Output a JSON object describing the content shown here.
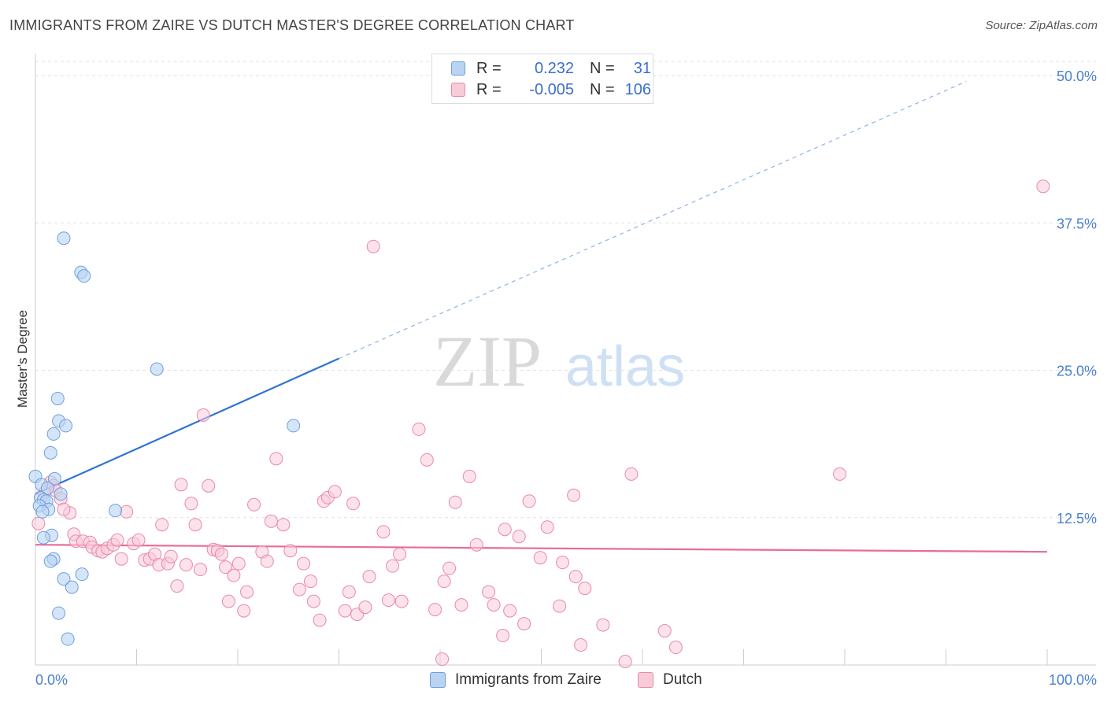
{
  "title": "IMMIGRANTS FROM ZAIRE VS DUTCH MASTER'S DEGREE CORRELATION CHART",
  "source": "Source: ZipAtlas.com",
  "watermark": {
    "zip": "ZIP",
    "atlas": "atlas"
  },
  "legend": {
    "rows": [
      {
        "r_label": "R =",
        "r_value": "0.232",
        "n_label": "N =",
        "n_value": "31",
        "color": "#a9c8f0",
        "border": "#6f9fdc"
      },
      {
        "r_label": "R =",
        "r_value": "-0.005",
        "n_label": "N =",
        "n_value": "106",
        "color": "#f8c3d3",
        "border": "#e88aa8"
      }
    ]
  },
  "bottom_legend": [
    {
      "label": "Immigrants from Zaire",
      "color": "#a9c8f0",
      "border": "#6f9fdc"
    },
    {
      "label": "Dutch",
      "color": "#f8c3d3",
      "border": "#e88aa8"
    }
  ],
  "chart_data": {
    "type": "scatter",
    "xlabel": "",
    "ylabel": "Master's Degree",
    "xlim": [
      0,
      100
    ],
    "ylim": [
      0,
      50
    ],
    "x_tick_labels": [
      "0.0%",
      "100.0%"
    ],
    "y_ticks": [
      12.5,
      25.0,
      37.5,
      50.0
    ],
    "y_tick_labels": [
      "12.5%",
      "25.0%",
      "37.5%",
      "50.0%"
    ],
    "grid": "horizontal dashed",
    "legend_position": "top-center",
    "colors": {
      "zaire": "#6f9fdc",
      "zaire_fill": "#b9d3f3",
      "zaire_line": "#2f73d0",
      "dutch": "#e88aa8",
      "dutch_fill": "#f9cbd9",
      "dutch_line": "#e86c95"
    },
    "series": [
      {
        "name": "Immigrants from Zaire",
        "r": 0.232,
        "n": 31,
        "trend": {
          "x0": 0,
          "y0": 14.5,
          "x1": 30,
          "y1": 26.0,
          "dashed_to_x": 92,
          "dashed_to_y": 49.5
        },
        "points": [
          [
            0,
            16
          ],
          [
            2.8,
            36.2
          ],
          [
            4.5,
            33.3
          ],
          [
            4.8,
            33
          ],
          [
            12,
            25.1
          ],
          [
            2.2,
            22.6
          ],
          [
            2.3,
            20.7
          ],
          [
            3,
            20.3
          ],
          [
            1.8,
            19.6
          ],
          [
            1.5,
            18
          ],
          [
            1.9,
            15.8
          ],
          [
            0.6,
            15.3
          ],
          [
            1.2,
            15
          ],
          [
            2.5,
            14.5
          ],
          [
            0.5,
            14.2
          ],
          [
            0.8,
            14
          ],
          [
            1.1,
            13.9
          ],
          [
            0.4,
            13.5
          ],
          [
            1.3,
            13.2
          ],
          [
            0.7,
            13
          ],
          [
            7.9,
            13.1
          ],
          [
            1.6,
            11
          ],
          [
            0.8,
            10.8
          ],
          [
            1.8,
            9
          ],
          [
            1.5,
            8.8
          ],
          [
            4.6,
            7.7
          ],
          [
            2.8,
            7.3
          ],
          [
            3.6,
            6.6
          ],
          [
            2.3,
            4.4
          ],
          [
            3.2,
            2.2
          ],
          [
            25.5,
            20.3
          ]
        ]
      },
      {
        "name": "Dutch",
        "r": -0.005,
        "n": 106,
        "trend": {
          "x0": 0,
          "y0": 10.2,
          "x1": 100,
          "y1": 9.6
        },
        "points": [
          [
            0.3,
            12
          ],
          [
            1.5,
            15.5
          ],
          [
            1.8,
            15.2
          ],
          [
            2,
            14.8
          ],
          [
            0.9,
            14.6
          ],
          [
            2.5,
            14.1
          ],
          [
            3.4,
            12.9
          ],
          [
            2.8,
            13.2
          ],
          [
            3.8,
            11.1
          ],
          [
            4,
            10.5
          ],
          [
            4.7,
            10.5
          ],
          [
            5.4,
            10.4
          ],
          [
            5.6,
            10
          ],
          [
            6.2,
            9.7
          ],
          [
            6.6,
            9.6
          ],
          [
            7.1,
            9.9
          ],
          [
            7.7,
            10.2
          ],
          [
            8.1,
            10.6
          ],
          [
            8.5,
            9
          ],
          [
            9,
            13
          ],
          [
            9.7,
            10.3
          ],
          [
            10.2,
            10.6
          ],
          [
            10.8,
            8.9
          ],
          [
            11.3,
            9
          ],
          [
            11.8,
            9.4
          ],
          [
            12.2,
            8.5
          ],
          [
            12.5,
            11.9
          ],
          [
            13.1,
            8.6
          ],
          [
            13.4,
            9.2
          ],
          [
            14,
            6.7
          ],
          [
            14.4,
            15.3
          ],
          [
            14.9,
            8.5
          ],
          [
            15.4,
            13.7
          ],
          [
            15.8,
            11.9
          ],
          [
            16.3,
            8.1
          ],
          [
            16.6,
            21.2
          ],
          [
            17.1,
            15.2
          ],
          [
            17.6,
            9.8
          ],
          [
            18,
            9.7
          ],
          [
            18.4,
            9.4
          ],
          [
            18.8,
            8.3
          ],
          [
            19.1,
            5.4
          ],
          [
            19.6,
            7.6
          ],
          [
            20.1,
            8.6
          ],
          [
            20.6,
            4.6
          ],
          [
            20.9,
            6.2
          ],
          [
            21.6,
            13.6
          ],
          [
            22.4,
            9.6
          ],
          [
            22.9,
            8.8
          ],
          [
            23.3,
            12.2
          ],
          [
            23.8,
            17.5
          ],
          [
            24.5,
            11.9
          ],
          [
            25.2,
            9.7
          ],
          [
            26.1,
            6.4
          ],
          [
            26.5,
            8.6
          ],
          [
            27.2,
            7.1
          ],
          [
            27.5,
            5.4
          ],
          [
            28.1,
            3.8
          ],
          [
            28.5,
            13.9
          ],
          [
            28.9,
            14.2
          ],
          [
            29.6,
            14.7
          ],
          [
            30.6,
            4.6
          ],
          [
            31,
            6.2
          ],
          [
            31.4,
            13.7
          ],
          [
            31.8,
            4.3
          ],
          [
            32.6,
            4.9
          ],
          [
            33,
            7.5
          ],
          [
            33.4,
            35.5
          ],
          [
            34.4,
            11.3
          ],
          [
            34.9,
            5.5
          ],
          [
            35.3,
            8.4
          ],
          [
            36.2,
            5.4
          ],
          [
            36,
            9.4
          ],
          [
            37.9,
            20
          ],
          [
            38.7,
            17.4
          ],
          [
            39.5,
            4.7
          ],
          [
            40.2,
            0.5
          ],
          [
            40.4,
            7.1
          ],
          [
            40.9,
            8.2
          ],
          [
            41.5,
            13.8
          ],
          [
            42.1,
            5.1
          ],
          [
            42.9,
            16
          ],
          [
            43.6,
            10.2
          ],
          [
            44.8,
            6.2
          ],
          [
            45.3,
            5.1
          ],
          [
            46.2,
            2.5
          ],
          [
            46.4,
            11.5
          ],
          [
            46.9,
            4.6
          ],
          [
            47.8,
            10.9
          ],
          [
            48.3,
            3.5
          ],
          [
            48.8,
            13.9
          ],
          [
            49.9,
            9.1
          ],
          [
            50.6,
            11.7
          ],
          [
            51.8,
            5
          ],
          [
            52.1,
            8.7
          ],
          [
            53.2,
            14.4
          ],
          [
            53.4,
            7.5
          ],
          [
            54.3,
            6.5
          ],
          [
            53.9,
            1.7
          ],
          [
            56.1,
            3.4
          ],
          [
            58.3,
            0.3
          ],
          [
            58.9,
            16.2
          ],
          [
            62.2,
            2.9
          ],
          [
            63.3,
            1.5
          ],
          [
            79.5,
            16.2
          ],
          [
            99.6,
            40.6
          ]
        ]
      }
    ]
  }
}
